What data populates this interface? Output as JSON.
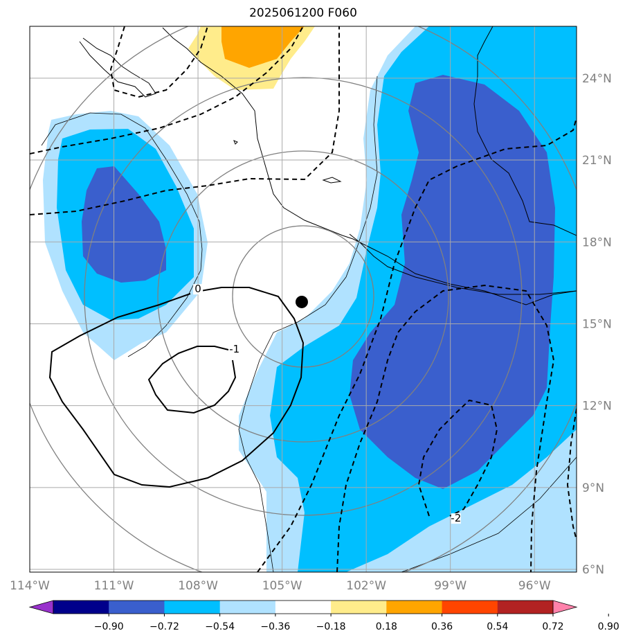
{
  "title": "2025061200 F060",
  "map": {
    "lon_min": -114,
    "lon_max": -94.5,
    "lat_min": 5.9,
    "lat_max": 25.9,
    "lon_ticks": [
      -114,
      -111,
      -108,
      -105,
      -102,
      -99,
      -96
    ],
    "lon_tick_labels": [
      "114°W",
      "111°W",
      "108°W",
      "105°W",
      "102°W",
      "99°W",
      "96°W"
    ],
    "lat_ticks": [
      6,
      9,
      12,
      15,
      18,
      21,
      24
    ],
    "lat_tick_labels": [
      "6°N",
      "9°N",
      "12°N",
      "15°N",
      "18°N",
      "21°N",
      "24°N"
    ],
    "storm_center": {
      "lon": -104.3,
      "lat": 15.8
    },
    "contour_labels": [
      {
        "text": "0",
        "lon": -108.0,
        "lat": 16.2
      },
      {
        "text": "-1",
        "lon": -106.7,
        "lat": 14.0
      },
      {
        "text": "-2",
        "lon": -98.8,
        "lat": 7.8
      }
    ],
    "colors": {
      "grid": "#a9a9a9",
      "range_rings": "#808080",
      "coastline": "#000000"
    }
  },
  "colorbar": {
    "levels": [
      "-0.90",
      "-0.72",
      "-0.54",
      "-0.36",
      "-0.18",
      "0.18",
      "0.36",
      "0.54",
      "0.72",
      "0.90"
    ],
    "colors": [
      "#9932cc",
      "#00008b",
      "#3a5fcd",
      "#00bfff",
      "#b0e2ff",
      "#ffffff",
      "#ffec8b",
      "#ffa500",
      "#ff4500",
      "#b22222",
      "#ff82ab"
    ]
  }
}
